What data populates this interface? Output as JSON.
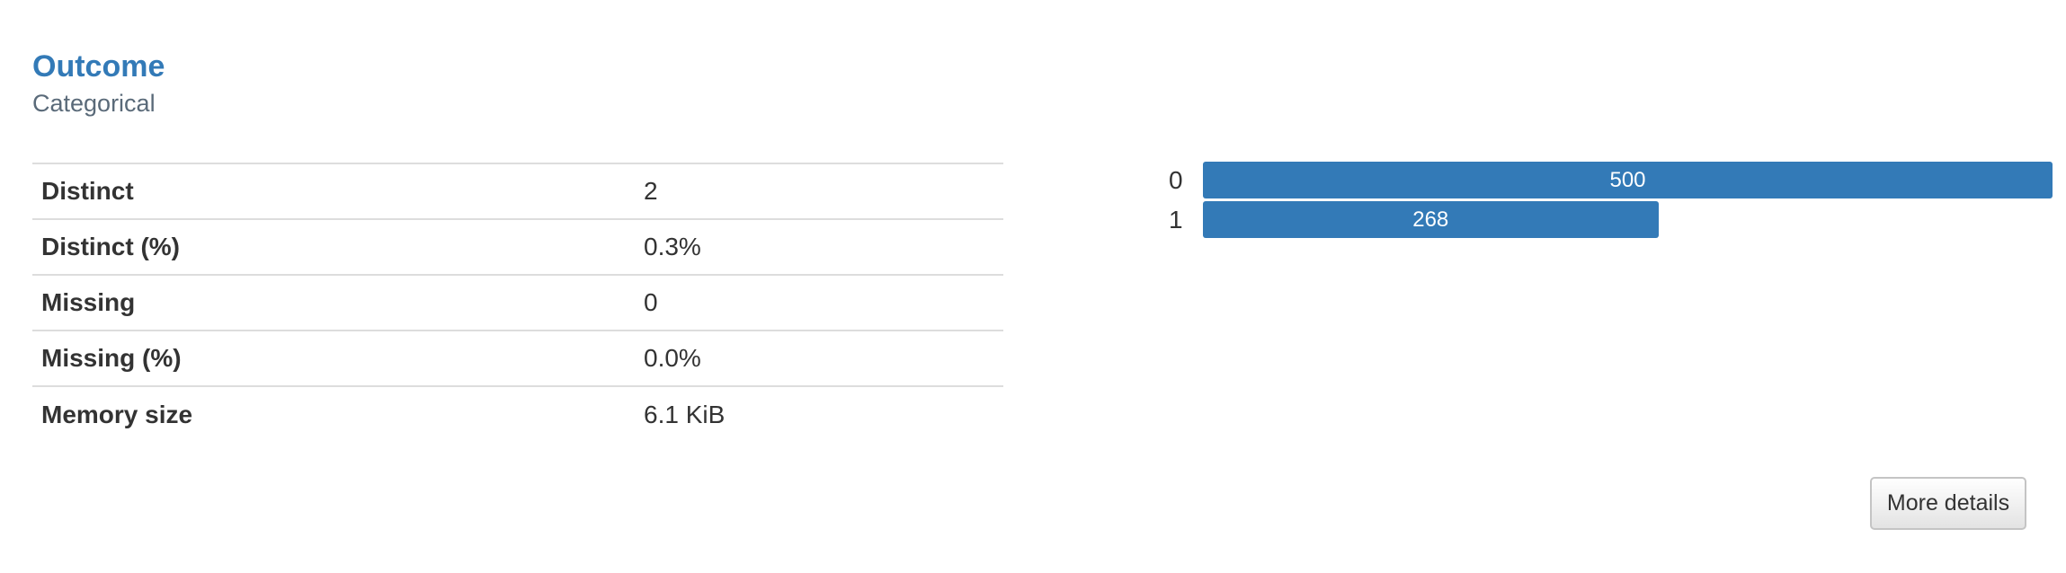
{
  "variable": {
    "name": "Outcome",
    "type": "Categorical"
  },
  "stats": [
    {
      "label": "Distinct",
      "value": "2"
    },
    {
      "label": "Distinct (%)",
      "value": "0.3%"
    },
    {
      "label": "Missing",
      "value": "0"
    },
    {
      "label": "Missing (%)",
      "value": "0.0%"
    },
    {
      "label": "Memory size",
      "value": "6.1 KiB"
    }
  ],
  "chart_data": {
    "type": "bar",
    "orientation": "horizontal",
    "categories": [
      "0",
      "1"
    ],
    "values": [
      500,
      268
    ],
    "bar_color": "#337ab7",
    "value_labels": [
      "500",
      "268"
    ]
  },
  "actions": {
    "more_details_label": "More details"
  },
  "colors": {
    "title": "#337ab7",
    "bar": "#337ab7"
  }
}
